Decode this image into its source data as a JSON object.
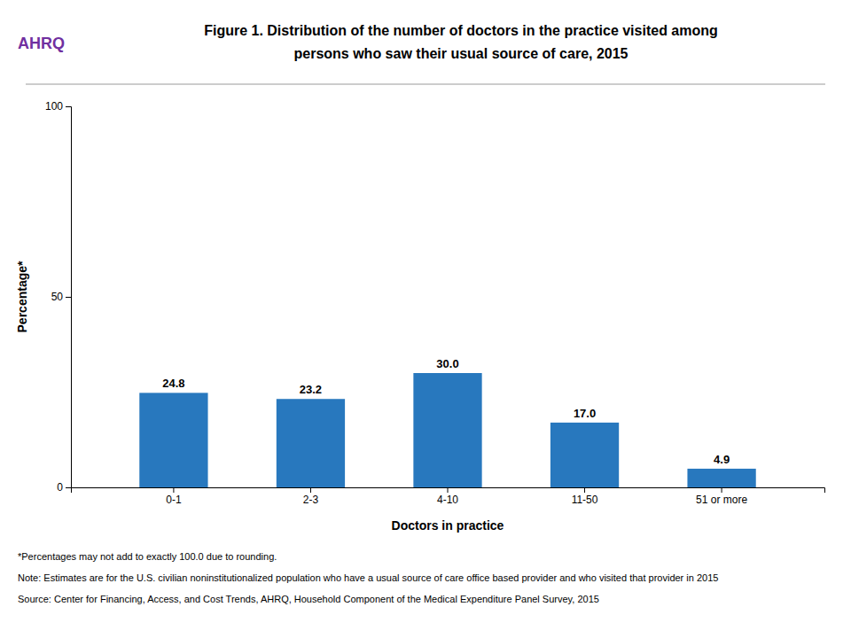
{
  "chart_data": {
    "type": "bar",
    "title": [
      "Figure 1. Distribution of the number of doctors in the practice visited among",
      "persons who saw their usual source of care, 2015"
    ],
    "logo_text": "AHRQ",
    "categories": [
      "0-1",
      "2-3",
      "4-10",
      "11-50",
      "51 or more"
    ],
    "values": [
      24.8,
      23.2,
      30.0,
      17.0,
      4.9
    ],
    "value_labels": [
      "24.8",
      "23.2",
      "30.0",
      "17.0",
      "4.9"
    ],
    "color": "#2878BE",
    "xlabel": "Doctors in practice",
    "ylabel": "Percentage*",
    "ylim": [
      0,
      100
    ],
    "yticks": [
      0,
      50,
      100
    ],
    "grid": false,
    "data_labels": true,
    "footnotes": [
      "*Percentages may not add to exactly 100.0 due to rounding.",
      "Note: Estimates are for the U.S. civilian noninstitutionalized population who have a usual source of care office based provider and who visited that provider in 2015",
      "Source: Center for Financing, Access, and Cost Trends, AHRQ, Household Component of the Medical Expenditure Panel Survey,  2015"
    ]
  }
}
